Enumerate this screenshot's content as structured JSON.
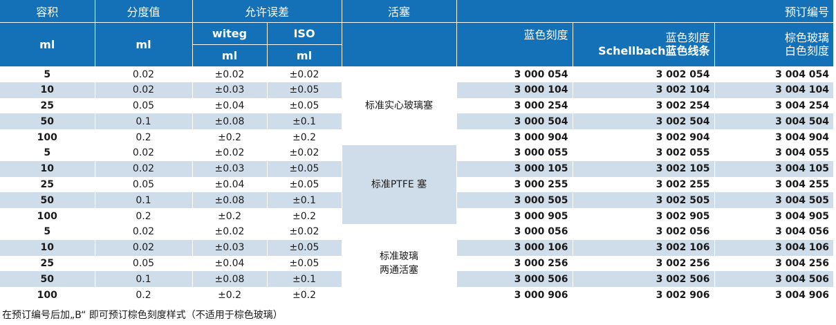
{
  "header": {
    "volume": "容积",
    "graduation": "分度值",
    "tolerance": "允许误差",
    "stopcock": "活塞",
    "order_no": "预订编号",
    "unit_ml": "ml",
    "witeg": "witeg",
    "iso": "ISO",
    "blue_grad": "蓝色刻度",
    "schellbach_line1": "蓝色刻度",
    "schellbach_line2": "Schellbach蓝色线条",
    "amber_line1": "棕色玻璃",
    "amber_line2": "白色刻度"
  },
  "groups": [
    {
      "stopcock_lines": [
        "标准实心玻璃塞"
      ],
      "rows": [
        {
          "vol": "5",
          "div": "0.02",
          "witeg": "±0.02",
          "iso": "±0.02",
          "blue": "3 000 054",
          "schellbach": "3 002 054",
          "amber": "3 004 054"
        },
        {
          "vol": "10",
          "div": "0.02",
          "witeg": "±0.03",
          "iso": "±0.05",
          "blue": "3 000 104",
          "schellbach": "3 002 104",
          "amber": "3 004 104"
        },
        {
          "vol": "25",
          "div": "0.05",
          "witeg": "±0.04",
          "iso": "±0.05",
          "blue": "3 000 254",
          "schellbach": "3 002 254",
          "amber": "3 004 254"
        },
        {
          "vol": "50",
          "div": "0.1",
          "witeg": "±0.08",
          "iso": "±0.1",
          "blue": "3 000 504",
          "schellbach": "3 002 504",
          "amber": "3 004 504"
        },
        {
          "vol": "100",
          "div": "0.2",
          "witeg": "±0.2",
          "iso": "±0.2",
          "blue": "3 000 904",
          "schellbach": "3 002 904",
          "amber": "3 004 904"
        }
      ]
    },
    {
      "stopcock_lines": [
        "标准PTFE 塞"
      ],
      "rows": [
        {
          "vol": "5",
          "div": "0.02",
          "witeg": "±0.02",
          "iso": "±0.02",
          "blue": "3 000 055",
          "schellbach": "3 002 055",
          "amber": "3 004 055"
        },
        {
          "vol": "10",
          "div": "0.02",
          "witeg": "±0.03",
          "iso": "±0.05",
          "blue": "3 000 105",
          "schellbach": "3 002 105",
          "amber": "3 004 105"
        },
        {
          "vol": "25",
          "div": "0.05",
          "witeg": "±0.04",
          "iso": "±0.05",
          "blue": "3 000 255",
          "schellbach": "3 002 255",
          "amber": "3 004 255"
        },
        {
          "vol": "50",
          "div": "0.1",
          "witeg": "±0.08",
          "iso": "±0.1",
          "blue": "3 000 505",
          "schellbach": "3 002 505",
          "amber": "3 004 505"
        },
        {
          "vol": "100",
          "div": "0.2",
          "witeg": "±0.2",
          "iso": "±0.2",
          "blue": "3 000 905",
          "schellbach": "3 002 905",
          "amber": "3 004 905"
        }
      ]
    },
    {
      "stopcock_lines": [
        "标准玻璃",
        "两通活塞"
      ],
      "rows": [
        {
          "vol": "5",
          "div": "0.02",
          "witeg": "±0.02",
          "iso": "±0.02",
          "blue": "3 000 056",
          "schellbach": "3 002 056",
          "amber": "3 004 056"
        },
        {
          "vol": "10",
          "div": "0.02",
          "witeg": "±0.03",
          "iso": "±0.05",
          "blue": "3 000 106",
          "schellbach": "3 002 106",
          "amber": "3 004 106"
        },
        {
          "vol": "25",
          "div": "0.05",
          "witeg": "±0.04",
          "iso": "±0.05",
          "blue": "3 000 256",
          "schellbach": "3 002 256",
          "amber": "3 004 256"
        },
        {
          "vol": "50",
          "div": "0.1",
          "witeg": "±0.08",
          "iso": "±0.1",
          "blue": "3 000 506",
          "schellbach": "3 002 506",
          "amber": "3 004 506"
        },
        {
          "vol": "100",
          "div": "0.2",
          "witeg": "±0.2",
          "iso": "±0.2",
          "blue": "3 000 906",
          "schellbach": "3 002 906",
          "amber": "3 004 906"
        }
      ]
    }
  ],
  "footnote": "在预订编号后加„B“ 即可预订棕色刻度样式（不适用于棕色玻璃）",
  "colors": {
    "header_bg": "#1471b8",
    "band_bg": "#cfdcea",
    "header_text": "#ffffff"
  }
}
